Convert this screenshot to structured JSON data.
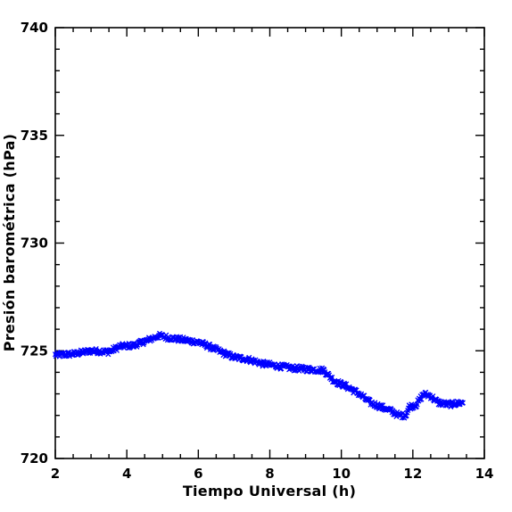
{
  "chart_data": {
    "type": "scatter",
    "marker": "x",
    "color": "#0000ff",
    "title": "",
    "xlabel": "Tiempo Universal (h)",
    "ylabel": "Presión barométrica (hPa)",
    "xlim": [
      2,
      14
    ],
    "ylim": [
      720,
      740
    ],
    "xticks": [
      2,
      4,
      6,
      8,
      10,
      12,
      14
    ],
    "xtick_labels": [
      "2",
      "4",
      "6",
      "8",
      "10",
      "12",
      "14"
    ],
    "yticks": [
      720,
      725,
      730,
      735,
      740
    ],
    "ytick_labels": [
      "720",
      "725",
      "730",
      "735",
      "740"
    ],
    "x_minor_step": 0.5,
    "y_minor_step": 1,
    "grid": false,
    "trend_points": [
      [
        2.0,
        724.8
      ],
      [
        2.5,
        724.85
      ],
      [
        3.0,
        725.0
      ],
      [
        3.5,
        724.95
      ],
      [
        3.8,
        725.2
      ],
      [
        4.2,
        725.25
      ],
      [
        4.6,
        725.5
      ],
      [
        4.9,
        725.7
      ],
      [
        5.2,
        725.6
      ],
      [
        5.6,
        725.5
      ],
      [
        6.0,
        725.4
      ],
      [
        6.3,
        725.2
      ],
      [
        6.7,
        724.9
      ],
      [
        7.0,
        724.7
      ],
      [
        7.4,
        724.6
      ],
      [
        7.8,
        724.4
      ],
      [
        8.2,
        724.3
      ],
      [
        8.6,
        724.2
      ],
      [
        9.0,
        724.15
      ],
      [
        9.4,
        724.1
      ],
      [
        9.5,
        724.1
      ],
      [
        9.8,
        723.6
      ],
      [
        10.2,
        723.3
      ],
      [
        10.5,
        723.0
      ],
      [
        10.8,
        722.6
      ],
      [
        11.1,
        722.4
      ],
      [
        11.4,
        722.2
      ],
      [
        11.6,
        722.0
      ],
      [
        11.8,
        722.0
      ],
      [
        11.9,
        722.4
      ],
      [
        12.1,
        722.5
      ],
      [
        12.3,
        723.0
      ],
      [
        12.5,
        722.9
      ],
      [
        12.7,
        722.6
      ],
      [
        13.0,
        722.5
      ],
      [
        13.4,
        722.6
      ]
    ],
    "sample_step_h": 0.02,
    "noise_hpa": 0.12
  }
}
